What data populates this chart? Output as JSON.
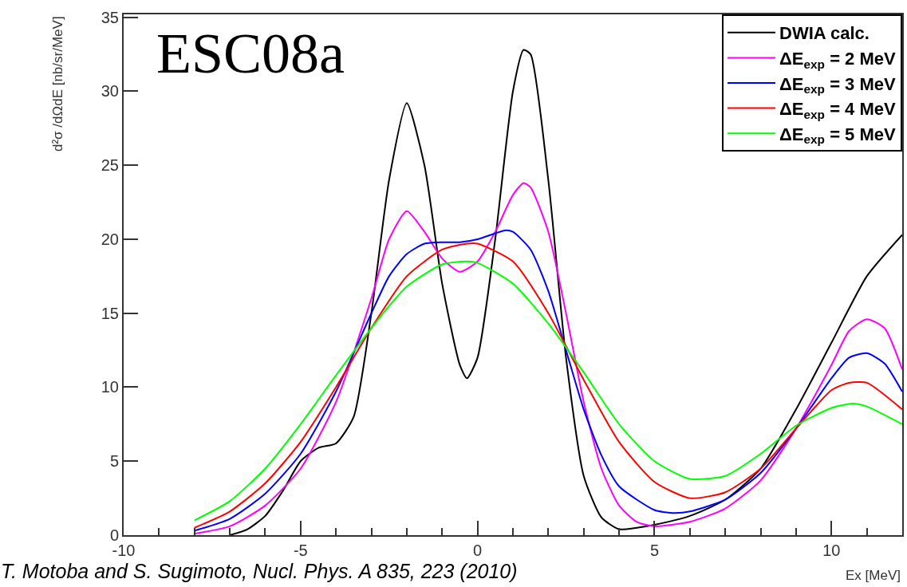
{
  "chart_data": {
    "type": "line",
    "title": "ESC08a",
    "xlabel": "Ex [MeV]",
    "ylabel": "d²σ /dΩdE [nb/sr/MeV]",
    "annotations": [
      "T. Motoba and S. Sugimoto, Nucl. Phys. A 835, 223 (2010)"
    ],
    "xlim": [
      -10,
      12
    ],
    "ylim": [
      0,
      35.2
    ],
    "xticks": [
      -10,
      {
        "value": -9,
        "label": null
      },
      {
        "value": -8,
        "label": null
      },
      {
        "value": -7,
        "label": null
      },
      {
        "value": -6,
        "label": null
      },
      -5,
      {
        "value": -4,
        "label": null
      },
      {
        "value": -3,
        "label": null
      },
      {
        "value": -2,
        "label": null
      },
      {
        "value": -1,
        "label": null
      },
      0,
      {
        "value": 1,
        "label": null
      },
      {
        "value": 2,
        "label": null
      },
      {
        "value": 3,
        "label": null
      },
      {
        "value": 4,
        "label": null
      },
      5,
      {
        "value": 6,
        "label": null
      },
      {
        "value": 7,
        "label": null
      },
      {
        "value": 8,
        "label": null
      },
      {
        "value": 9,
        "label": null
      },
      10,
      {
        "value": 11,
        "label": null
      },
      {
        "value": 12,
        "label": null
      }
    ],
    "yticks": [
      0,
      5,
      10,
      15,
      20,
      25,
      30,
      35
    ],
    "legend": "top right",
    "marker": "none",
    "line_style": "solid",
    "series": [
      {
        "name": "DWIA calc.",
        "color": "#000000",
        "x": [
          -7,
          -6.5,
          -6,
          -5.5,
          -5,
          -4.5,
          -4,
          -3.5,
          -3,
          -2.5,
          -2,
          -1.5,
          -1,
          -0.5,
          -0.3,
          0,
          0.5,
          1,
          1.3,
          1.5,
          2,
          2.5,
          3,
          3.5,
          4,
          4.5,
          5,
          6,
          7,
          8,
          9,
          10,
          11,
          12
        ],
        "values": [
          0,
          0.4,
          1.3,
          3,
          5,
          5.9,
          6.2,
          8,
          15,
          24,
          29.2,
          25,
          17,
          11.5,
          10.6,
          12,
          20,
          30,
          32.8,
          32.5,
          24,
          12,
          4,
          1.2,
          0.4,
          0.5,
          0.7,
          1.3,
          2.4,
          4.5,
          8.5,
          13,
          17.5,
          20.3
        ]
      },
      {
        "name": "ΔE$_{exp}$ = 2 MeV",
        "color": "#ff00ff",
        "x": [
          -8,
          -7,
          -6,
          -5,
          -4,
          -3,
          -2.5,
          -2,
          -1.5,
          -1,
          -0.5,
          0,
          0.5,
          1,
          1.3,
          1.5,
          2,
          2.5,
          3,
          3.5,
          4,
          4.5,
          5,
          6,
          7,
          8,
          9,
          10,
          10.5,
          11,
          11.5,
          12
        ],
        "values": [
          0.1,
          0.6,
          2,
          4.5,
          9,
          16,
          20,
          21.9,
          20.5,
          18.7,
          17.8,
          18.5,
          20.5,
          23,
          23.8,
          23.5,
          20.5,
          15,
          9,
          4.5,
          2,
          0.9,
          0.6,
          0.9,
          1.8,
          3.7,
          7.2,
          11.5,
          13.8,
          14.6,
          14,
          11.2
        ]
      },
      {
        "name": "ΔE$_{exp}$ = 3 MeV",
        "color": "#0000ff",
        "x": [
          -8,
          -7,
          -6,
          -5,
          -4,
          -3,
          -2.5,
          -2,
          -1.5,
          -1,
          -0.5,
          0,
          0.5,
          0.8,
          1,
          1.5,
          2,
          2.5,
          3,
          3.5,
          4,
          5,
          5.5,
          6,
          7,
          8,
          9,
          10,
          10.5,
          11,
          11.5,
          12
        ],
        "values": [
          0.3,
          1.1,
          2.8,
          5.5,
          9.7,
          15,
          17.5,
          19,
          19.7,
          19.8,
          19.8,
          20,
          20.4,
          20.6,
          20.5,
          19.3,
          16.5,
          12.5,
          8.5,
          5.4,
          3.3,
          1.7,
          1.5,
          1.6,
          2.4,
          4.2,
          7.2,
          10.6,
          12,
          12.3,
          11.6,
          9.7
        ]
      },
      {
        "name": "ΔE$_{exp}$ = 4 MeV",
        "color": "#ff0000",
        "x": [
          -8,
          -7,
          -6,
          -5,
          -4,
          -3,
          -2,
          -1,
          -0.3,
          0,
          1,
          2,
          3,
          4,
          5,
          6,
          7,
          8,
          9,
          10,
          10.5,
          11,
          12
        ],
        "values": [
          0.5,
          1.6,
          3.5,
          6.3,
          10,
          14,
          17.5,
          19.3,
          19.7,
          19.7,
          18.5,
          15,
          10.5,
          6.3,
          3.6,
          2.5,
          2.9,
          4.5,
          7.2,
          9.8,
          10.3,
          10.3,
          8.5
        ]
      },
      {
        "name": "ΔE$_{exp}$ = 5 MeV",
        "color": "#00ff00",
        "x": [
          -8,
          -7,
          -6,
          -5,
          -4,
          -3,
          -2,
          -1,
          -0.3,
          0,
          1,
          2,
          3,
          4,
          5,
          6,
          7,
          8,
          9,
          10,
          10.6,
          11,
          12
        ],
        "values": [
          1,
          2.3,
          4.5,
          7.5,
          10.8,
          14,
          16.8,
          18.3,
          18.5,
          18.4,
          17,
          14.3,
          11,
          7.5,
          5,
          3.8,
          4,
          5.5,
          7.4,
          8.6,
          8.9,
          8.7,
          7.5
        ]
      }
    ]
  }
}
